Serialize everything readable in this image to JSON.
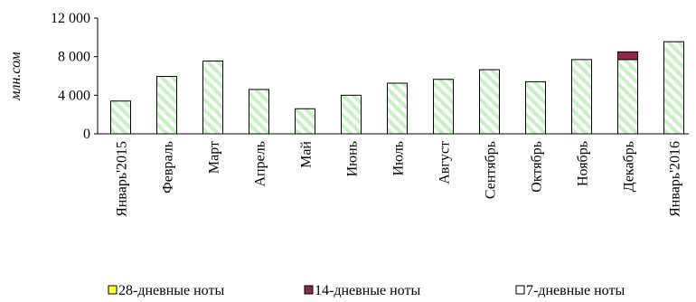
{
  "chart_data": {
    "type": "bar",
    "stacked": true,
    "ylabel": "млн.сом",
    "ylim": [
      0,
      12000
    ],
    "yticks": [
      0,
      4000,
      8000,
      12000
    ],
    "ytick_labels": [
      "0",
      "4 000",
      "8 000",
      "12 000"
    ],
    "categories": [
      "Январь'2015",
      "Февраль",
      "Март",
      "Апрель",
      "Май",
      "Июнь",
      "Июль",
      "Август",
      "Сентябрь",
      "Октябрь",
      "Ноябрь",
      "Декабрь",
      "Январь'2016"
    ],
    "series": [
      {
        "name": "7-дневные ноты",
        "color": "#d6f2d0",
        "pattern": "diagonal-hatch",
        "values": [
          3400,
          5950,
          7550,
          4600,
          2600,
          4000,
          5250,
          5650,
          6650,
          5400,
          7700,
          7700,
          9550
        ]
      },
      {
        "name": "14-дневные ноты",
        "color": "#8b2c4e",
        "values": [
          0,
          0,
          0,
          0,
          0,
          0,
          0,
          0,
          0,
          0,
          0,
          800,
          0
        ]
      },
      {
        "name": "28-дневные ноты",
        "color": "#ffff33",
        "values": [
          0,
          0,
          0,
          0,
          0,
          0,
          0,
          0,
          0,
          0,
          0,
          0,
          0
        ]
      }
    ],
    "legend_order": [
      "28-дневные ноты",
      "14-дневные ноты",
      "7-дневные ноты"
    ],
    "legend_position": "bottom",
    "grid": false
  }
}
